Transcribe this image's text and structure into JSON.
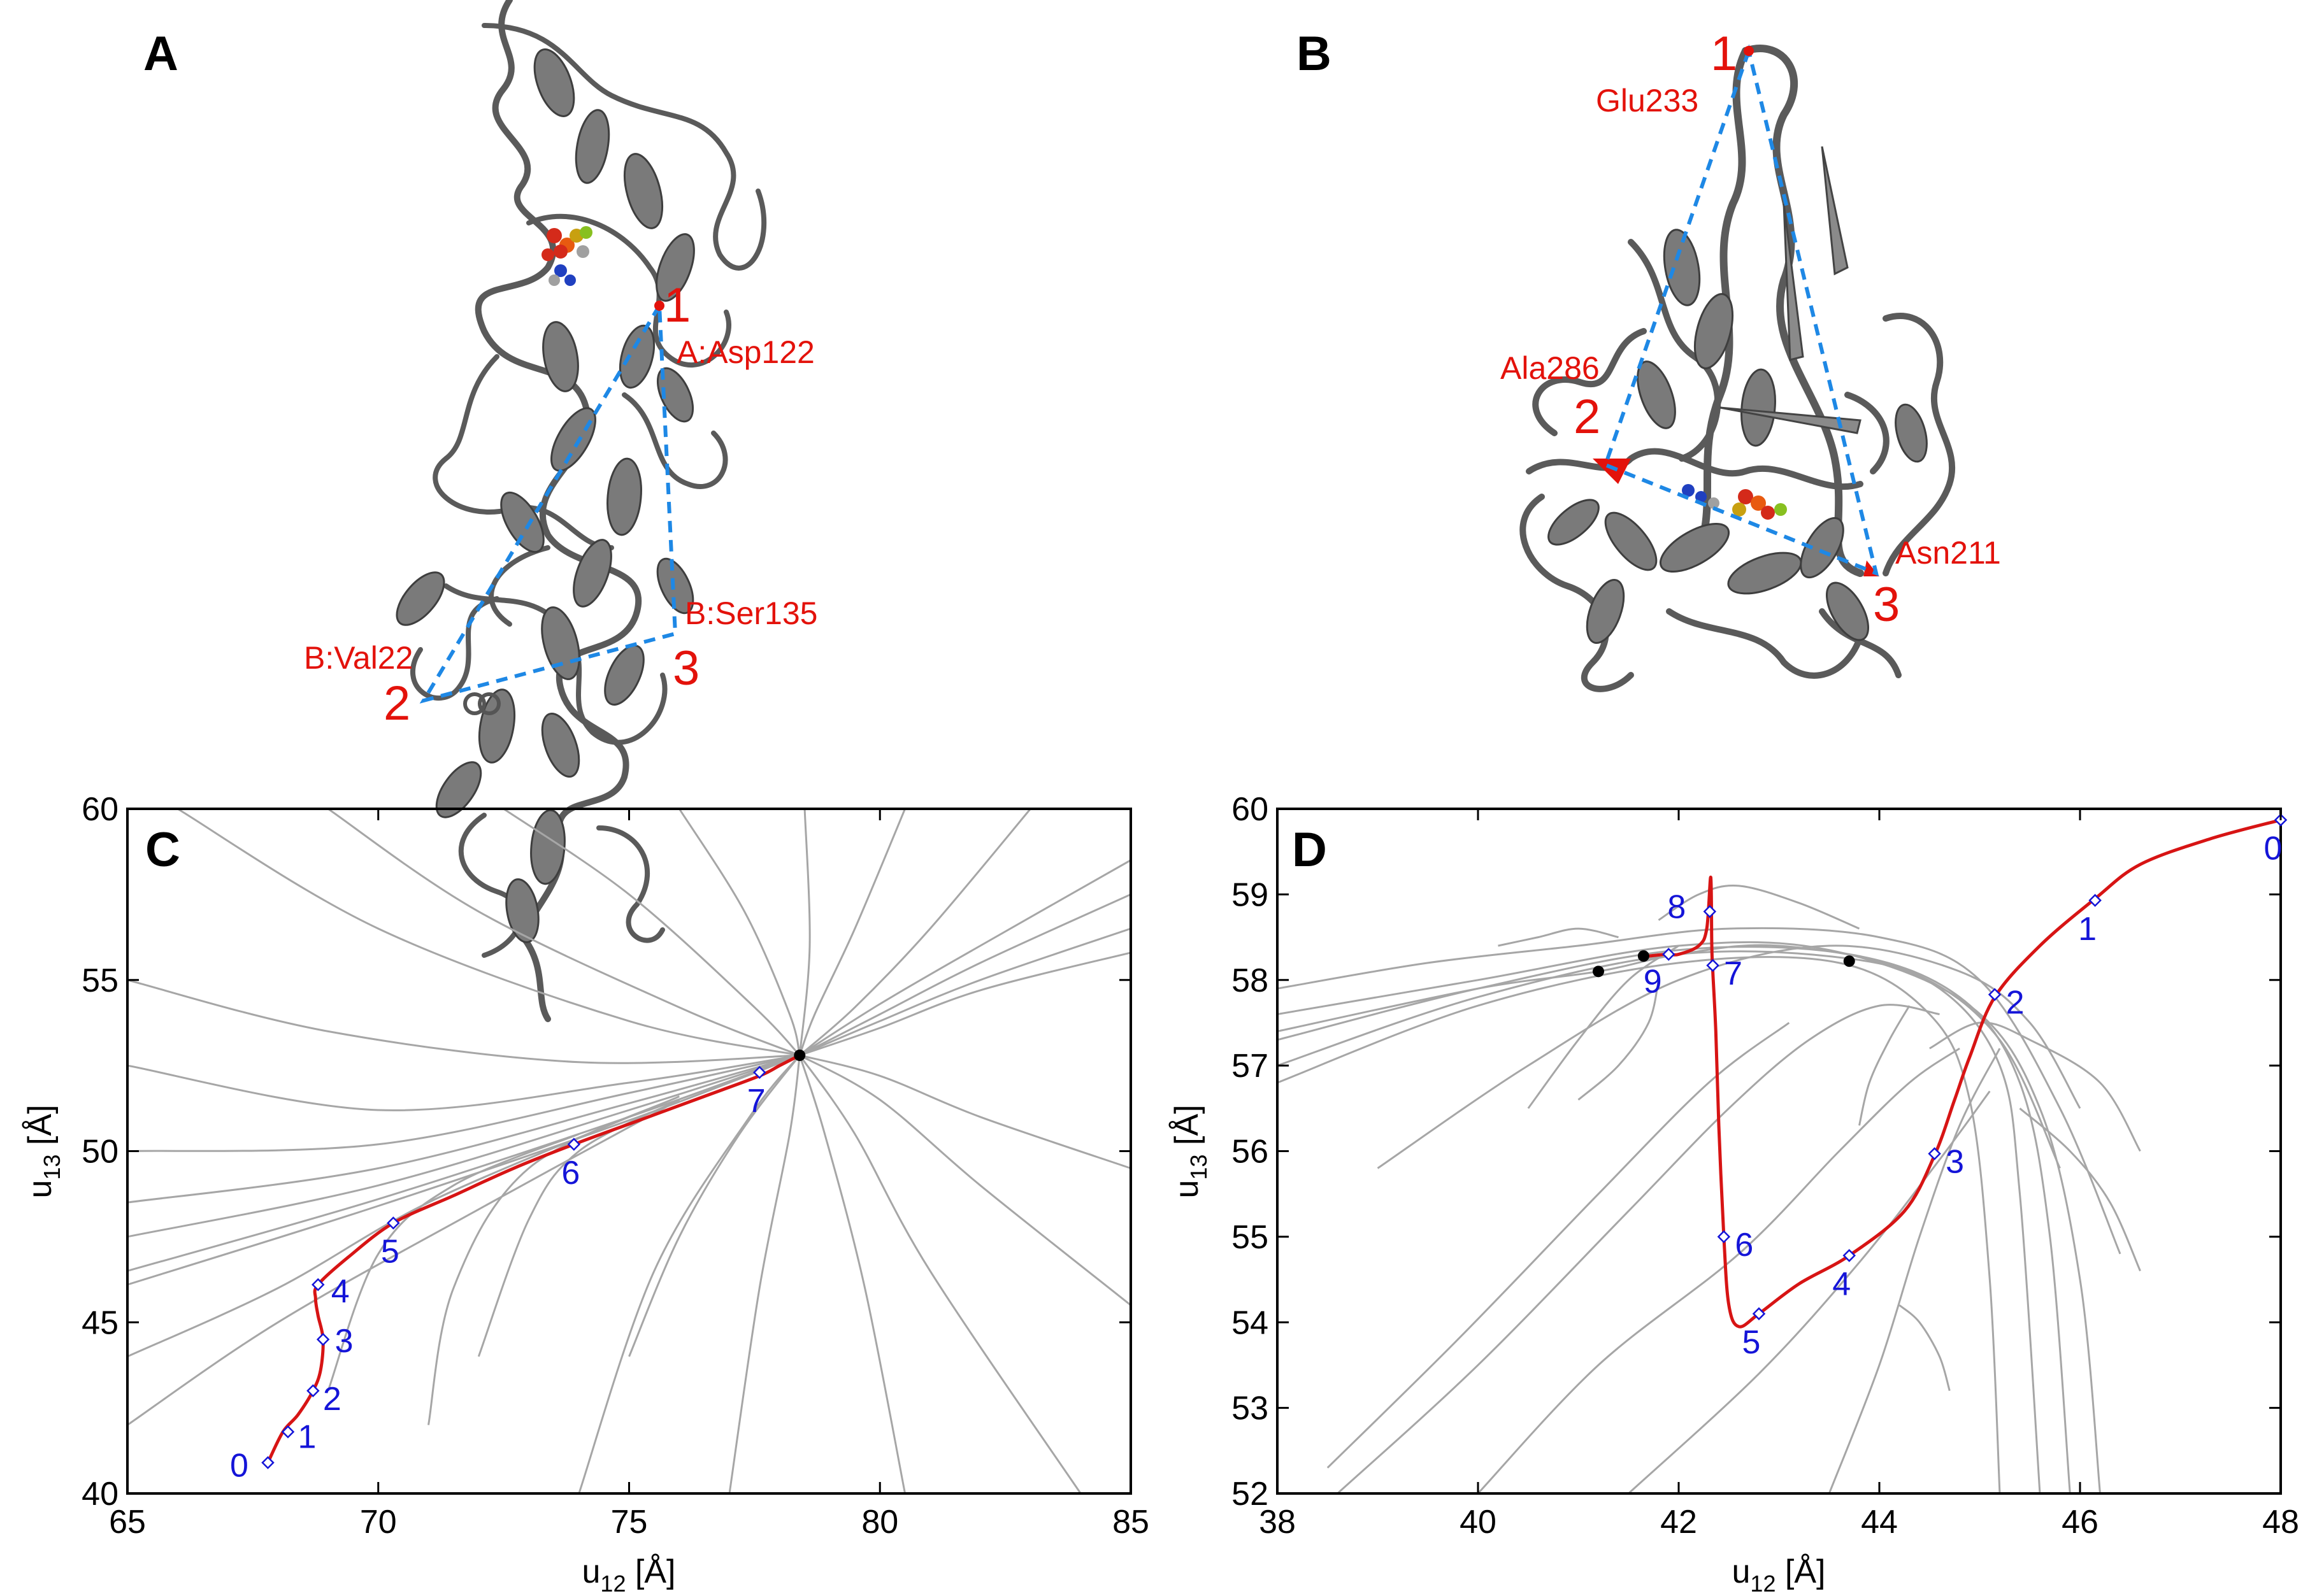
{
  "panels": {
    "A": {
      "letter": "A",
      "residues": [
        {
          "num": "1",
          "name": "A:Asp122"
        },
        {
          "num": "2",
          "name": "B:Val22"
        },
        {
          "num": "3",
          "name": "B:Ser135"
        }
      ]
    },
    "B": {
      "letter": "B",
      "residues": [
        {
          "num": "1",
          "name": "Glu233"
        },
        {
          "num": "2",
          "name": "Ala286"
        },
        {
          "num": "3",
          "name": "Asn211"
        }
      ]
    }
  },
  "colors": {
    "trajectory": "#d71414",
    "background_traj": "#a6a6a6",
    "point_label": "#1414d8",
    "marker": "#1414d8",
    "equilibrium": "#000000",
    "triangle": "#1e88e5",
    "residue": "#e3120b"
  },
  "chart_data": [
    {
      "panel": "C",
      "type": "line",
      "xlabel_main": "u",
      "xlabel_sub": "12",
      "xlabel_unit": " [Å]",
      "ylabel_main": "u",
      "ylabel_sub": "13",
      "ylabel_unit": " [Å]",
      "xlim": [
        65,
        85
      ],
      "ylim": [
        40,
        60
      ],
      "xticks": [
        "65",
        "70",
        "75",
        "80",
        "85"
      ],
      "yticks": [
        "40",
        "45",
        "50",
        "55",
        "60"
      ],
      "main_trajectory": [
        [
          67.8,
          40.9
        ],
        [
          68.1,
          41.8
        ],
        [
          68.4,
          42.3
        ],
        [
          68.7,
          43.0
        ],
        [
          68.85,
          43.6
        ],
        [
          68.9,
          44.5
        ],
        [
          68.8,
          45.2
        ],
        [
          68.75,
          45.7
        ],
        [
          68.8,
          46.1
        ],
        [
          69.4,
          46.9
        ],
        [
          70.3,
          47.9
        ],
        [
          71.5,
          48.7
        ],
        [
          72.7,
          49.5
        ],
        [
          73.9,
          50.2
        ],
        [
          75.2,
          50.9
        ],
        [
          76.5,
          51.6
        ],
        [
          77.6,
          52.2
        ],
        [
          78.0,
          52.5
        ],
        [
          78.4,
          52.8
        ]
      ],
      "numbered_points": [
        {
          "label": "0",
          "x": 67.8,
          "y": 40.9
        },
        {
          "label": "1",
          "x": 68.2,
          "y": 41.8
        },
        {
          "label": "2",
          "x": 68.7,
          "y": 43.0
        },
        {
          "label": "3",
          "x": 68.9,
          "y": 44.5
        },
        {
          "label": "4",
          "x": 68.8,
          "y": 46.1
        },
        {
          "label": "5",
          "x": 70.3,
          "y": 47.9
        },
        {
          "label": "6",
          "x": 73.9,
          "y": 50.2
        },
        {
          "label": "7",
          "x": 77.6,
          "y": 52.3
        }
      ],
      "equilibrium_points": [
        {
          "x": 78.4,
          "y": 52.8
        }
      ]
    },
    {
      "panel": "D",
      "type": "line",
      "xlabel_main": "u",
      "xlabel_sub": "12",
      "xlabel_unit": " [Å]",
      "ylabel_main": "u",
      "ylabel_sub": "13",
      "ylabel_unit": " [Å]",
      "xlim": [
        38,
        48
      ],
      "ylim": [
        52,
        60
      ],
      "xticks": [
        "38",
        "40",
        "42",
        "44",
        "46",
        "48"
      ],
      "yticks": [
        "52",
        "53",
        "54",
        "55",
        "56",
        "57",
        "58",
        "59",
        "60"
      ],
      "main_trajectory": [
        [
          48.0,
          59.87
        ],
        [
          47.3,
          59.65
        ],
        [
          46.6,
          59.35
        ],
        [
          46.15,
          58.95
        ],
        [
          45.6,
          58.4
        ],
        [
          45.15,
          57.8
        ],
        [
          44.9,
          57.1
        ],
        [
          44.75,
          56.6
        ],
        [
          44.55,
          55.95
        ],
        [
          44.25,
          55.3
        ],
        [
          43.7,
          54.78
        ],
        [
          43.2,
          54.45
        ],
        [
          42.8,
          54.1
        ],
        [
          42.6,
          53.95
        ],
        [
          42.5,
          54.2
        ],
        [
          42.45,
          55.0
        ],
        [
          42.4,
          56.3
        ],
        [
          42.37,
          57.4
        ],
        [
          42.34,
          58.1
        ],
        [
          42.33,
          58.4
        ],
        [
          42.32,
          59.2
        ],
        [
          42.28,
          58.6
        ],
        [
          42.2,
          58.4
        ],
        [
          42.0,
          58.3
        ],
        [
          41.88,
          58.3
        ],
        [
          41.7,
          58.28
        ],
        [
          41.6,
          58.27
        ]
      ],
      "numbered_points": [
        {
          "label": "0",
          "x": 48.0,
          "y": 59.87
        },
        {
          "label": "1",
          "x": 46.15,
          "y": 58.93
        },
        {
          "label": "2",
          "x": 45.15,
          "y": 57.83
        },
        {
          "label": "3",
          "x": 44.55,
          "y": 55.97
        },
        {
          "label": "4",
          "x": 43.7,
          "y": 54.78
        },
        {
          "label": "5",
          "x": 42.8,
          "y": 54.1
        },
        {
          "label": "6",
          "x": 42.45,
          "y": 55.0
        },
        {
          "label": "7",
          "x": 42.34,
          "y": 58.17
        },
        {
          "label": "8",
          "x": 42.31,
          "y": 58.8
        },
        {
          "label": "9",
          "x": 41.9,
          "y": 58.3
        }
      ],
      "equilibrium_points": [
        {
          "x": 41.2,
          "y": 58.1
        },
        {
          "x": 41.65,
          "y": 58.28
        },
        {
          "x": 43.7,
          "y": 58.22
        }
      ]
    }
  ]
}
